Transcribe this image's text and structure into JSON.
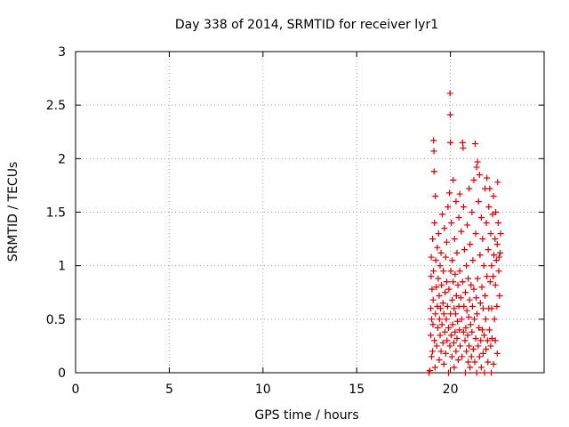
{
  "chart_data": {
    "type": "scatter",
    "title": "Day 338 of 2014, SRMTID for receiver lyr1",
    "xlabel": "GPS time / hours",
    "ylabel": "SRMTID / TECUs",
    "xlim": [
      0,
      25
    ],
    "ylim": [
      0,
      3
    ],
    "xticks": [
      0,
      5,
      10,
      15,
      20
    ],
    "xtick_labels": [
      "0",
      "5",
      "10",
      "15",
      "20"
    ],
    "yticks": [
      0,
      0.5,
      1,
      1.5,
      2,
      2.5,
      3
    ],
    "ytick_labels": [
      "0",
      "0.5",
      "1",
      "1.5",
      "2",
      "2.5",
      "3"
    ],
    "grid": true,
    "marker": "+",
    "color": "#dd0000",
    "series": [
      {
        "name": "SRMTID",
        "points": [
          [
            18.85,
            0.0
          ],
          [
            18.9,
            0.02
          ],
          [
            18.95,
            0.35
          ],
          [
            18.95,
            0.6
          ],
          [
            18.97,
            0.9
          ],
          [
            18.98,
            1.08
          ],
          [
            19.0,
            0.15
          ],
          [
            19.0,
            0.5
          ],
          [
            19.02,
            0.78
          ],
          [
            19.05,
            0.2
          ],
          [
            19.05,
            1.25
          ],
          [
            19.07,
            0.45
          ],
          [
            19.08,
            0.68
          ],
          [
            19.1,
            0.95
          ],
          [
            19.1,
            2.17
          ],
          [
            19.12,
            2.07
          ],
          [
            19.13,
            1.88
          ],
          [
            19.15,
            1.4
          ],
          [
            19.15,
            0.3
          ],
          [
            19.18,
            0.05
          ],
          [
            19.2,
            0.55
          ],
          [
            19.2,
            1.65
          ],
          [
            19.22,
            1.05
          ],
          [
            19.25,
            0.8
          ],
          [
            19.27,
            0.25
          ],
          [
            19.3,
            0.62
          ],
          [
            19.3,
            1.17
          ],
          [
            19.32,
            0.42
          ],
          [
            19.35,
            0.88
          ],
          [
            19.37,
            1.3
          ],
          [
            19.4,
            0.12
          ],
          [
            19.4,
            0.72
          ],
          [
            19.42,
            0.5
          ],
          [
            19.45,
            0.35
          ],
          [
            19.45,
            1.0
          ],
          [
            19.48,
            0.6
          ],
          [
            19.5,
            0.2
          ],
          [
            19.5,
            1.12
          ],
          [
            19.52,
            0.82
          ],
          [
            19.55,
            0.45
          ],
          [
            19.57,
            1.48
          ],
          [
            19.6,
            0.28
          ],
          [
            19.6,
            0.65
          ],
          [
            19.62,
            0.95
          ],
          [
            19.65,
            0.08
          ],
          [
            19.65,
            0.55
          ],
          [
            19.68,
            1.35
          ],
          [
            19.7,
            0.38
          ],
          [
            19.72,
            0.75
          ],
          [
            19.75,
            0.18
          ],
          [
            19.75,
            1.08
          ],
          [
            19.78,
            0.5
          ],
          [
            19.8,
            0.85
          ],
          [
            19.8,
            1.22
          ],
          [
            19.82,
            0.3
          ],
          [
            19.85,
            0.62
          ],
          [
            19.87,
            1.55
          ],
          [
            19.9,
            0.0
          ],
          [
            19.9,
            0.42
          ],
          [
            19.92,
            0.78
          ],
          [
            19.95,
            1.68
          ],
          [
            19.97,
            0.25
          ],
          [
            19.98,
            2.61
          ],
          [
            19.99,
            2.41
          ],
          [
            20.0,
            2.15
          ],
          [
            20.0,
            0.55
          ],
          [
            20.02,
            0.95
          ],
          [
            20.05,
            0.35
          ],
          [
            20.05,
            1.4
          ],
          [
            20.08,
            0.15
          ],
          [
            20.1,
            0.68
          ],
          [
            20.1,
            1.05
          ],
          [
            20.12,
            0.45
          ],
          [
            20.15,
            0.85
          ],
          [
            20.15,
            1.8
          ],
          [
            20.18,
            0.28
          ],
          [
            20.2,
            0.05
          ],
          [
            20.2,
            0.6
          ],
          [
            20.22,
            1.25
          ],
          [
            20.25,
            0.38
          ],
          [
            20.25,
            0.92
          ],
          [
            20.28,
            0.55
          ],
          [
            20.3,
            0.2
          ],
          [
            20.3,
            1.6
          ],
          [
            20.32,
            0.72
          ],
          [
            20.35,
            0.32
          ],
          [
            20.35,
            1.12
          ],
          [
            20.38,
            0.48
          ],
          [
            20.4,
            0.82
          ],
          [
            20.42,
            0.12
          ],
          [
            20.45,
            0.62
          ],
          [
            20.45,
            1.45
          ],
          [
            20.48,
            0.4
          ],
          [
            20.5,
            0.95
          ],
          [
            20.5,
            1.67
          ],
          [
            20.52,
            0.25
          ],
          [
            20.55,
            0.7
          ],
          [
            20.58,
            1.32
          ],
          [
            20.6,
            0.5
          ],
          [
            20.62,
            0.15
          ],
          [
            20.65,
            2.15
          ],
          [
            20.65,
            0.85
          ],
          [
            20.68,
            2.1
          ],
          [
            20.7,
            0.38
          ],
          [
            20.7,
            1.55
          ],
          [
            20.72,
            0.62
          ],
          [
            20.75,
            1.15
          ],
          [
            20.78,
            0.3
          ],
          [
            20.8,
            0.0
          ],
          [
            20.8,
            0.75
          ],
          [
            20.82,
            0.42
          ],
          [
            20.85,
            1.0
          ],
          [
            20.85,
            0.2
          ],
          [
            20.88,
            0.58
          ],
          [
            20.9,
            1.38
          ],
          [
            20.92,
            0.35
          ],
          [
            20.95,
            0.88
          ],
          [
            20.95,
            0.1
          ],
          [
            20.98,
            0.52
          ],
          [
            21.0,
            1.72
          ],
          [
            21.0,
            0.25
          ],
          [
            21.02,
            0.68
          ],
          [
            21.05,
            0.05
          ],
          [
            21.05,
            1.2
          ],
          [
            21.08,
            0.45
          ],
          [
            21.1,
            0.82
          ],
          [
            21.12,
            0.15
          ],
          [
            21.15,
            1.5
          ],
          [
            21.15,
            0.38
          ],
          [
            21.18,
            0.62
          ],
          [
            21.2,
            1.05
          ],
          [
            21.22,
            0.22
          ],
          [
            21.25,
            0.78
          ],
          [
            21.25,
            1.8
          ],
          [
            21.28,
            0.5
          ],
          [
            21.3,
            0.1
          ],
          [
            21.32,
            2.14
          ],
          [
            21.35,
            1.3
          ],
          [
            21.35,
            0.32
          ],
          [
            21.38,
            0.7
          ],
          [
            21.4,
            0.0
          ],
          [
            21.4,
            1.92
          ],
          [
            21.42,
            0.55
          ],
          [
            21.45,
            1.97
          ],
          [
            21.45,
            0.88
          ],
          [
            21.48,
            0.25
          ],
          [
            21.5,
            1.6
          ],
          [
            21.52,
            0.42
          ],
          [
            21.55,
            1.85
          ],
          [
            21.55,
            0.15
          ],
          [
            21.58,
            1.1
          ],
          [
            21.6,
            0.65
          ],
          [
            21.62,
            0.3
          ],
          [
            21.65,
            0.05
          ],
          [
            21.65,
            1.45
          ],
          [
            21.68,
            0.8
          ],
          [
            21.7,
            0.4
          ],
          [
            21.72,
            1.25
          ],
          [
            21.75,
            0.18
          ],
          [
            21.75,
            0.6
          ],
          [
            21.78,
            1.0
          ],
          [
            21.8,
            0.35
          ],
          [
            21.82,
            0.0
          ],
          [
            21.85,
            0.72
          ],
          [
            21.85,
            1.72
          ],
          [
            21.88,
            0.5
          ],
          [
            21.9,
            0.22
          ],
          [
            21.92,
            1.4
          ],
          [
            21.95,
            0.9
          ],
          [
            21.95,
            1.82
          ],
          [
            21.98,
            0.3
          ],
          [
            22.0,
            0.1
          ],
          [
            22.02,
            1.15
          ],
          [
            22.05,
            0.6
          ],
          [
            22.05,
            1.55
          ],
          [
            22.08,
            0.4
          ],
          [
            22.1,
            1.72
          ],
          [
            22.12,
            0.85
          ],
          [
            22.15,
            0.25
          ],
          [
            22.15,
            1.3
          ],
          [
            22.18,
            0.0
          ],
          [
            22.2,
            0.6
          ],
          [
            22.2,
            1.0
          ],
          [
            22.22,
            0.32
          ],
          [
            22.25,
            1.48
          ],
          [
            22.28,
            0.9
          ],
          [
            22.3,
            0.08
          ],
          [
            22.3,
            1.65
          ],
          [
            22.32,
            1.1
          ],
          [
            22.35,
            0.5
          ],
          [
            22.38,
            1.25
          ],
          [
            22.4,
            0.3
          ],
          [
            22.4,
            0.82
          ],
          [
            22.42,
            1.5
          ],
          [
            22.45,
            1.05
          ],
          [
            22.48,
            0.62
          ],
          [
            22.5,
            1.2
          ],
          [
            22.5,
            0.18
          ],
          [
            22.52,
            1.78
          ],
          [
            22.55,
            1.4
          ],
          [
            22.58,
            0.95
          ],
          [
            22.6,
            1.08
          ],
          [
            22.62,
            0.72
          ],
          [
            22.65,
            1.12
          ],
          [
            22.68,
            1.3
          ]
        ]
      }
    ]
  }
}
